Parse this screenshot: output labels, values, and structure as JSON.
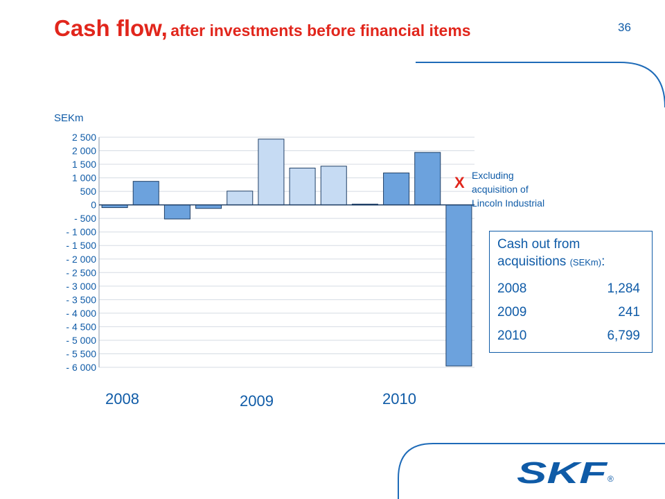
{
  "page": {
    "title_main": "Cash flow,",
    "title_sub": "after investments before financial items",
    "page_number": "36"
  },
  "chart_data": {
    "type": "bar",
    "ylabel": "SEKm",
    "ylim": [
      -6000,
      2500
    ],
    "yticks": [
      2500,
      2000,
      1500,
      1000,
      500,
      0,
      -500,
      -1000,
      -1500,
      -2000,
      -2500,
      -3000,
      -3500,
      -4000,
      -4500,
      -5000,
      -5500,
      -6000
    ],
    "ytick_labels": [
      "2 500",
      "2 000",
      "1 500",
      "1 000",
      "500",
      "0",
      "- 500",
      "- 1 000",
      "- 1 500",
      "- 2 000",
      "- 2 500",
      "- 3 000",
      "- 3 500",
      "- 4 000",
      "- 4 500",
      "- 5 000",
      "- 5 500",
      "- 6 000"
    ],
    "grid": true,
    "group_labels": [
      "2008",
      "2009",
      "2010"
    ],
    "bars": [
      {
        "year": "2008",
        "value": -100,
        "color": "#6ca2dd"
      },
      {
        "year": "2008",
        "value": 870,
        "color": "#6ca2dd"
      },
      {
        "year": "2008",
        "value": -520,
        "color": "#6ca2dd"
      },
      {
        "year": "2008",
        "value": -130,
        "color": "#6ca2dd"
      },
      {
        "year": "2009",
        "value": 510,
        "color": "#c6dbf3"
      },
      {
        "year": "2009",
        "value": 2430,
        "color": "#c6dbf3"
      },
      {
        "year": "2009",
        "value": 1360,
        "color": "#c6dbf3"
      },
      {
        "year": "2009",
        "value": 1430,
        "color": "#c6dbf3"
      },
      {
        "year": "2010",
        "value": 30,
        "color": "#6ca2dd"
      },
      {
        "year": "2010",
        "value": 1180,
        "color": "#6ca2dd"
      },
      {
        "year": "2010",
        "value": 1940,
        "color": "#6ca2dd"
      },
      {
        "year": "2010",
        "value": -5950,
        "color": "#6ca2dd"
      }
    ],
    "annotation": {
      "mark": "X",
      "lines": [
        "Excluding",
        "acquisition of",
        "Lincoln Industrial"
      ]
    }
  },
  "acquisitions": {
    "heading_line1": "Cash out from",
    "heading_line2": "acquisitions",
    "heading_unit": "(SEKm)",
    "heading_colon": ":",
    "rows": [
      {
        "year": "2008",
        "value": "1,284"
      },
      {
        "year": "2009",
        "value": "241"
      },
      {
        "year": "2010",
        "value": "6,799"
      }
    ]
  },
  "colors": {
    "title": "#e1261c",
    "text": "#0f5ba7",
    "bar_dark": "#6ca2dd",
    "bar_light": "#c6dbf3",
    "logo": "#0f5ba7"
  },
  "logo": {
    "text": "SKF",
    "mark": "®"
  }
}
